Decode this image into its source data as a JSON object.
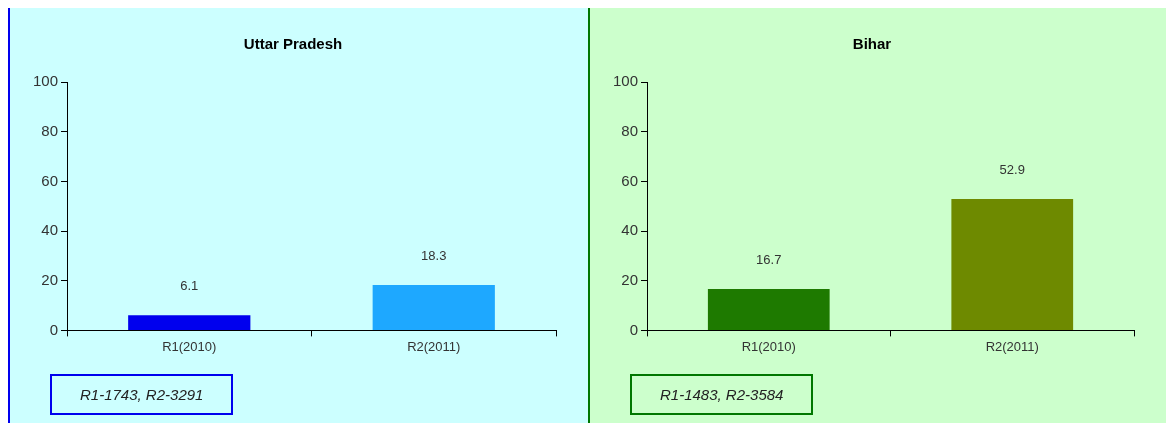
{
  "chart_data": [
    {
      "type": "bar",
      "title": "Uttar Pradesh",
      "categories": [
        "R1(2010)",
        "R2(2011)"
      ],
      "values": [
        6.1,
        18.3
      ],
      "colors": [
        "#0000ee",
        "#1ea8ff"
      ],
      "ylim": [
        0,
        100
      ],
      "yticks": [
        0,
        20,
        40,
        60,
        80,
        100
      ],
      "grid": false,
      "legend": false,
      "data_labels": true,
      "annotations": [
        "R1-1743, R2-3291"
      ]
    },
    {
      "type": "bar",
      "title": "Bihar",
      "categories": [
        "R1(2010)",
        "R2(2011)"
      ],
      "values": [
        16.7,
        52.9
      ],
      "colors": [
        "#1e7a00",
        "#6e8a00"
      ],
      "ylim": [
        0,
        100
      ],
      "yticks": [
        0,
        20,
        40,
        60,
        80,
        100
      ],
      "grid": false,
      "legend": false,
      "data_labels": true,
      "annotations": [
        "R1-1483, R2-3584"
      ]
    }
  ]
}
